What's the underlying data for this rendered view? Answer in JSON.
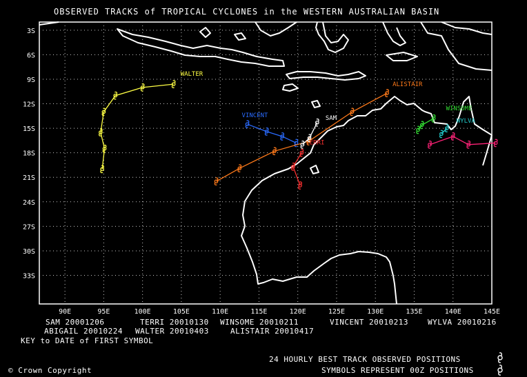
{
  "title": "OBSERVED TRACKS of TROPICAL CYCLONES in the WESTERN AUSTRALIAN BASIN",
  "axes": {
    "lat_labels": [
      "3S",
      "6S",
      "9S",
      "12S",
      "15S",
      "18S",
      "21S",
      "24S",
      "27S",
      "30S",
      "33S"
    ],
    "lon_labels": [
      "90E",
      "95E",
      "100E",
      "105E",
      "110E",
      "115E",
      "120E",
      "125E",
      "130E",
      "135E",
      "140E",
      "145E"
    ],
    "lat_values": [
      3,
      6,
      9,
      12,
      15,
      18,
      21,
      24,
      27,
      30,
      33
    ],
    "lon_values": [
      90,
      95,
      100,
      105,
      110,
      115,
      120,
      125,
      130,
      135,
      140,
      145
    ],
    "grid": "dotted"
  },
  "cyclones": [
    {
      "name": "WALTER",
      "color": "#ffff44",
      "track": [
        [
          104,
          9.6
        ],
        [
          100,
          10.0
        ],
        [
          96.5,
          11.0
        ],
        [
          95,
          13.0
        ],
        [
          94.6,
          15.5
        ],
        [
          95.1,
          17.5
        ],
        [
          94.8,
          20.0
        ]
      ]
    },
    {
      "name": "VINCENT",
      "color": "#2a6bff",
      "track": [
        [
          113.5,
          14.5
        ],
        [
          116,
          15.4
        ],
        [
          118,
          16.0
        ],
        [
          119.8,
          16.8
        ]
      ]
    },
    {
      "name": "TERRI",
      "color": "#ff3030",
      "track": [
        [
          120.5,
          18.0
        ],
        [
          119.4,
          19.7
        ],
        [
          120.3,
          22.0
        ]
      ]
    },
    {
      "name": "ALISTAIR",
      "color": "#ff7a1a",
      "track": [
        [
          131.5,
          10.7
        ],
        [
          127,
          13.0
        ],
        [
          121.4,
          16.6
        ],
        [
          117,
          17.8
        ],
        [
          112.5,
          19.9
        ],
        [
          109.5,
          21.5
        ]
      ]
    },
    {
      "name": "SAM",
      "color": "#ffffff",
      "track": [
        [
          122.5,
          14.3
        ],
        [
          121.5,
          16.2
        ],
        [
          120.6,
          17.0
        ]
      ]
    },
    {
      "name": "WINSOME",
      "color": "#33dd33",
      "track": [
        [
          137.5,
          13.8
        ],
        [
          136,
          14.6
        ],
        [
          135.5,
          15.2
        ]
      ]
    },
    {
      "name": "WYLVA",
      "color": "#22cccc",
      "track": [
        [
          139.2,
          15.0
        ],
        [
          138.5,
          15.7
        ]
      ]
    },
    {
      "name": "ABIGAIL",
      "color": "#ff2277",
      "track": [
        [
          137,
          17.0
        ],
        [
          140,
          16.0
        ],
        [
          142,
          17.0
        ],
        [
          145.5,
          16.8
        ]
      ]
    }
  ],
  "legend": {
    "row1": [
      {
        "name": "SAM",
        "date": "20001206"
      },
      {
        "name": "TERRI",
        "date": "20010130"
      },
      {
        "name": "WINSOME",
        "date": "20010211"
      },
      {
        "name": "VINCENT",
        "date": "20010213"
      },
      {
        "name": "WYLVA",
        "date": "20010216"
      }
    ],
    "row2": [
      {
        "name": "ABIGAIL",
        "date": "20010224"
      },
      {
        "name": "WALTER",
        "date": "20010403"
      },
      {
        "name": "ALISTAIR",
        "date": "20010417"
      }
    ],
    "key_note": "KEY to DATE of FIRST SYMBOL"
  },
  "footer": {
    "line1": "24 HOURLY BEST TRACK OBSERVED POSITIONS",
    "line2": "SYMBOLS REPRESENT 00Z POSITIONS",
    "copyright": "Crown Copyright",
    "copyright_symbol": "©"
  }
}
